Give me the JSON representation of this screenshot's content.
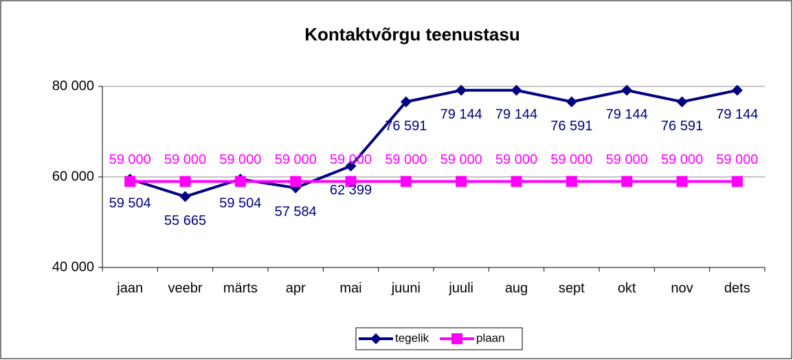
{
  "chart_data": {
    "type": "line",
    "title": "Kontaktvõrgu teenustasu",
    "categories": [
      "jaan",
      "veebr",
      "märts",
      "apr",
      "mai",
      "juuni",
      "juuli",
      "aug",
      "sept",
      "okt",
      "nov",
      "dets"
    ],
    "series": [
      {
        "name": "tegelik",
        "color": "#000080",
        "values": [
          59504,
          55665,
          59504,
          57584,
          62399,
          76591,
          79144,
          79144,
          76591,
          79144,
          76591,
          79144
        ],
        "value_labels": [
          "59 504",
          "55 665",
          "59 504",
          "57 584",
          "62 399",
          "76 591",
          "79 144",
          "79 144",
          "76 591",
          "79 144",
          "76 591",
          "79 144"
        ]
      },
      {
        "name": "plaan",
        "color": "#ff00ff",
        "values": [
          59000,
          59000,
          59000,
          59000,
          59000,
          59000,
          59000,
          59000,
          59000,
          59000,
          59000,
          59000
        ],
        "value_labels": [
          "59 000",
          "59 000",
          "59 000",
          "59 000",
          "59 000",
          "59 000",
          "59 000",
          "59 000",
          "59 000",
          "59 000",
          "59 000",
          "59 000"
        ]
      }
    ],
    "ylim": [
      40000,
      80000
    ],
    "yticks": [
      {
        "value": 40000,
        "label": "40 000"
      },
      {
        "value": 60000,
        "label": "60 000"
      },
      {
        "value": 80000,
        "label": "80 000"
      }
    ],
    "grid": true,
    "legend": "bottom"
  }
}
